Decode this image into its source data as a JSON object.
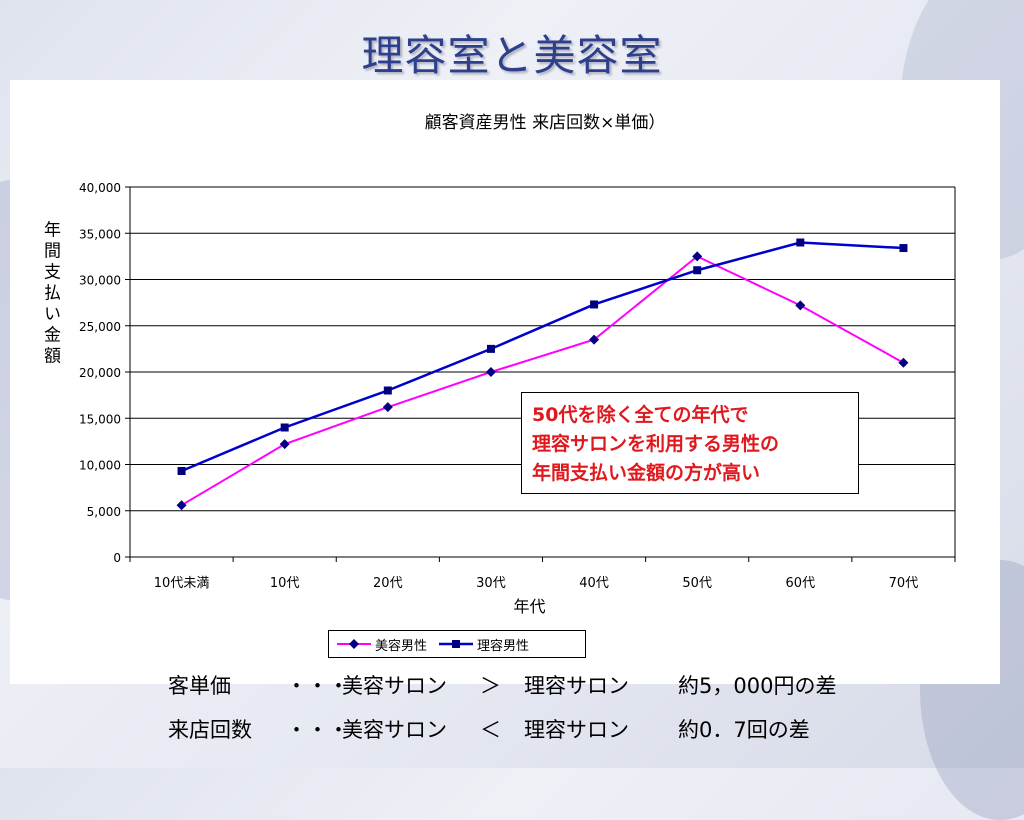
{
  "slide": {
    "title": "理容室と美容室",
    "callout": [
      "50代を除く全ての年代で",
      "理容サロンを利用する男性の",
      "年間支払い金額の方が高い"
    ],
    "summary": [
      {
        "label": "客単価",
        "dots": "・・・",
        "left": "美容サロン",
        "op": "＞",
        "right": "理容サロン",
        "note": "約5，000円の差"
      },
      {
        "label": "来店回数",
        "dots": "・・・",
        "left": "美容サロン",
        "op": "＜",
        "right": "理容サロン",
        "note": "約0．7回の差"
      }
    ]
  },
  "chart_data": {
    "type": "line",
    "title": "顧客資産男性  来店回数×単価）",
    "xlabel": "年代",
    "ylabel": "年間支払い金額",
    "categories": [
      "10代未満",
      "10代",
      "20代",
      "30代",
      "40代",
      "50代",
      "60代",
      "70代"
    ],
    "ylim": [
      0,
      40000
    ],
    "yticks": [
      0,
      5000,
      10000,
      15000,
      20000,
      25000,
      30000,
      35000,
      40000
    ],
    "ytick_labels": [
      "0",
      "5,000",
      "10,000",
      "15,000",
      "20,000",
      "25,000",
      "30,000",
      "35,000",
      "40,000"
    ],
    "grid": true,
    "legend": "bottom",
    "series": [
      {
        "name": "美容男性",
        "color": "#ff00ff",
        "marker": "diamond",
        "values": [
          5600,
          12200,
          16200,
          20000,
          23500,
          32500,
          27200,
          21000
        ]
      },
      {
        "name": "理容男性",
        "color": "#0000cc",
        "marker": "square",
        "values": [
          9300,
          14000,
          18000,
          22500,
          27300,
          31000,
          34000,
          33400
        ]
      }
    ]
  }
}
